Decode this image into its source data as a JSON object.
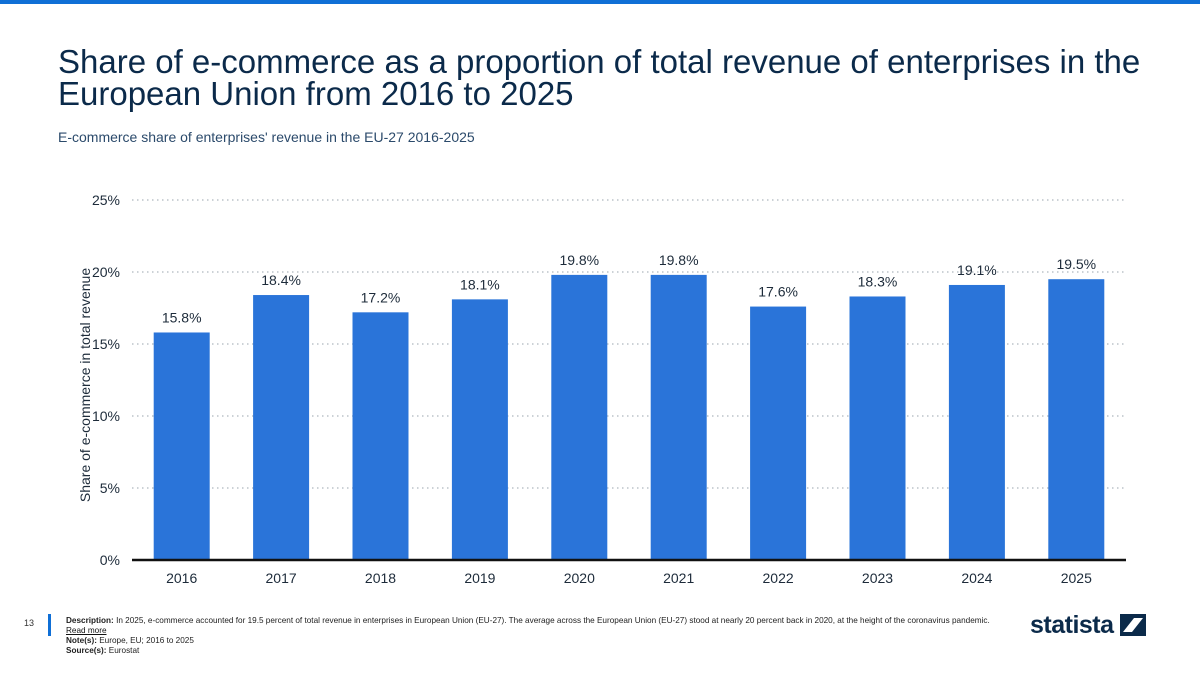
{
  "header": {
    "title": "Share of e-commerce as a proportion of total revenue of enterprises in the European Union from 2016 to 2025",
    "subtitle": "E-commerce share of enterprises' revenue in the EU-27 2016-2025"
  },
  "colors": {
    "accent": "#0f6fd6",
    "bar": "#2a74d9",
    "title": "#0b2a4a"
  },
  "chart_data": {
    "type": "bar",
    "categories": [
      "2016",
      "2017",
      "2018",
      "2019",
      "2020",
      "2021",
      "2022",
      "2023",
      "2024",
      "2025"
    ],
    "values": [
      15.8,
      18.4,
      17.2,
      18.1,
      19.8,
      19.8,
      17.6,
      18.3,
      19.1,
      19.5
    ],
    "value_labels": [
      "15.8%",
      "18.4%",
      "17.2%",
      "18.1%",
      "19.8%",
      "19.8%",
      "17.6%",
      "18.3%",
      "19.1%",
      "19.5%"
    ],
    "ylabel": "Share of e-commerce in total revenue",
    "ylim": [
      0,
      25
    ],
    "yticks": [
      0,
      5,
      10,
      15,
      20,
      25
    ],
    "ytick_labels": [
      "0%",
      "5%",
      "10%",
      "15%",
      "20%",
      "25%"
    ],
    "grid": true
  },
  "footer": {
    "page_number": "13",
    "description_label": "Description:",
    "description": "In 2025, e-commerce accounted for 19.5 percent of total revenue in enterprises in European Union (EU-27). The average across the European Union (EU-27) stood at nearly 20 percent back in 2020, at the height of the coronavirus pandemic.",
    "read_more": "Read more",
    "notes_label": "Note(s):",
    "notes": "Europe, EU; 2016 to 2025",
    "source_label": "Source(s):",
    "source": "Eurostat"
  },
  "logo": {
    "text": "statista",
    "icon": "statista-logo-icon"
  }
}
